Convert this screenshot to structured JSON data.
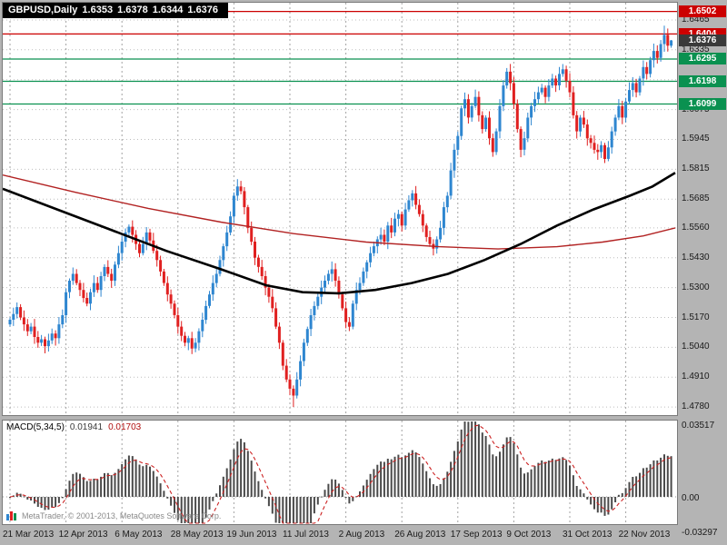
{
  "title": {
    "symbol": "GBPUSD,Daily",
    "open": "1.6353",
    "high": "1.6378",
    "low": "1.6344",
    "close": "1.6376"
  },
  "macd": {
    "name": "MACD(5,34,5)",
    "main": "0.01941",
    "signal": "0.01703",
    "axis_top": "0.03517",
    "axis_zero": "0.00",
    "axis_bottom": "-0.03297"
  },
  "footer": {
    "copyright": "MetaTrader, © 2001-2013, MetaQuotes Software Corp."
  },
  "colors": {
    "up": "#2e86d0",
    "down": "#e02020",
    "ma_black": "#000000",
    "ma_red": "#b22222",
    "resistance": "#cc0000",
    "support": "#0a9150",
    "current_badge": "#3a3a3a",
    "grid_h": "#bdbdbd",
    "grid_v": "#a3a3a3",
    "histogram": "#4a4a4a",
    "signal_line": "#cc2222"
  },
  "chart_data": {
    "type": "candlestick",
    "symbol": "GBPUSD",
    "timeframe": "Daily",
    "x_labels": [
      "21 Mar 2013",
      "12 Apr 2013",
      "6 May 2013",
      "28 May 2013",
      "19 Jun 2013",
      "11 Jul 2013",
      "2 Aug 2013",
      "26 Aug 2013",
      "17 Sep 2013",
      "9 Oct 2013",
      "31 Oct 2013",
      "22 Nov 2013"
    ],
    "bars_per_label": 16,
    "y_ticks": [
      "1.6465",
      "1.6335",
      "1.6205",
      "1.6075",
      "1.5945",
      "1.5815",
      "1.5685",
      "1.5560",
      "1.5430",
      "1.5300",
      "1.5170",
      "1.5040",
      "1.4910",
      "1.4780"
    ],
    "price_range": [
      1.4745,
      1.654
    ],
    "first_open": 1.514,
    "closes": [
      1.516,
      1.5185,
      1.5215,
      1.517,
      1.514,
      1.511,
      1.513,
      1.5085,
      1.506,
      1.5075,
      1.5045,
      1.507,
      1.51,
      1.508,
      1.514,
      1.518,
      1.528,
      1.533,
      1.536,
      1.532,
      1.529,
      1.5255,
      1.523,
      1.528,
      1.532,
      1.529,
      1.535,
      1.539,
      1.536,
      1.533,
      1.54,
      1.545,
      1.55,
      1.554,
      1.5565,
      1.553,
      1.549,
      1.545,
      1.549,
      1.554,
      1.5505,
      1.546,
      1.542,
      1.537,
      1.532,
      1.527,
      1.523,
      1.518,
      1.513,
      1.509,
      1.506,
      1.508,
      1.5035,
      1.506,
      1.511,
      1.516,
      1.522,
      1.527,
      1.532,
      1.536,
      1.542,
      1.548,
      1.554,
      1.561,
      1.57,
      1.574,
      1.572,
      1.565,
      1.556,
      1.55,
      1.543,
      1.539,
      1.535,
      1.53,
      1.526,
      1.521,
      1.513,
      1.506,
      1.496,
      1.49,
      1.486,
      1.483,
      1.49,
      1.498,
      1.506,
      1.512,
      1.518,
      1.522,
      1.526,
      1.53,
      1.533,
      1.536,
      1.538,
      1.533,
      1.527,
      1.521,
      1.515,
      1.513,
      1.523,
      1.529,
      1.532,
      1.537,
      1.541,
      1.545,
      1.548,
      1.551,
      1.553,
      1.55,
      1.557,
      1.554,
      1.56,
      1.562,
      1.557,
      1.564,
      1.568,
      1.571,
      1.566,
      1.562,
      1.557,
      1.552,
      1.549,
      1.547,
      1.551,
      1.556,
      1.565,
      1.57,
      1.581,
      1.59,
      1.596,
      1.608,
      1.612,
      1.604,
      1.609,
      1.613,
      1.605,
      1.599,
      1.604,
      1.595,
      1.589,
      1.598,
      1.609,
      1.618,
      1.624,
      1.619,
      1.61,
      1.599,
      1.59,
      1.595,
      1.604,
      1.609,
      1.612,
      1.615,
      1.617,
      1.613,
      1.618,
      1.621,
      1.618,
      1.623,
      1.625,
      1.62,
      1.615,
      1.605,
      1.598,
      1.604,
      1.601,
      1.595,
      1.593,
      1.59,
      1.589,
      1.592,
      1.586,
      1.591,
      1.598,
      1.604,
      1.609,
      1.604,
      1.611,
      1.616,
      1.619,
      1.615,
      1.621,
      1.626,
      1.623,
      1.629,
      1.633,
      1.63,
      1.636,
      1.64,
      1.6353,
      1.6376
    ],
    "extremes": {
      "min_low": 1.478,
      "min_index": 81,
      "max_high": 1.644,
      "max_index": 187,
      "last_ohlc": [
        1.6353,
        1.6378,
        1.6344,
        1.6376
      ]
    },
    "levels": [
      {
        "label": "1.6502",
        "price": 1.6502,
        "type": "resistance"
      },
      {
        "label": "1.6404",
        "price": 1.6404,
        "type": "resistance"
      },
      {
        "label": "1.6376",
        "price": 1.6376,
        "type": "current"
      },
      {
        "label": "1.6295",
        "price": 1.6295,
        "type": "support"
      },
      {
        "label": "1.6198",
        "price": 1.6198,
        "type": "support"
      },
      {
        "label": "1.6099",
        "price": 1.6099,
        "type": "support"
      }
    ],
    "ma_black": {
      "points": [
        [
          0,
          1.573
        ],
        [
          60,
          1.564
        ],
        [
          120,
          1.555
        ],
        [
          180,
          1.546
        ],
        [
          240,
          1.538
        ],
        [
          290,
          1.531
        ],
        [
          330,
          1.528
        ],
        [
          370,
          1.5275
        ],
        [
          410,
          1.529
        ],
        [
          450,
          1.532
        ],
        [
          490,
          1.536
        ],
        [
          530,
          1.542
        ],
        [
          570,
          1.549
        ],
        [
          610,
          1.557
        ],
        [
          650,
          1.564
        ],
        [
          690,
          1.57
        ],
        [
          715,
          1.574
        ],
        [
          740,
          1.58
        ]
      ]
    },
    "ma_red": {
      "points": [
        [
          0,
          1.579
        ],
        [
          80,
          1.5715
        ],
        [
          160,
          1.5645
        ],
        [
          240,
          1.5585
        ],
        [
          320,
          1.5535
        ],
        [
          400,
          1.5498
        ],
        [
          480,
          1.5478
        ],
        [
          545,
          1.5468
        ],
        [
          610,
          1.5478
        ],
        [
          660,
          1.5498
        ],
        [
          705,
          1.5525
        ],
        [
          740,
          1.556
        ]
      ]
    },
    "macd": {
      "params": [
        5,
        34,
        5
      ],
      "main_last": 0.01941,
      "signal_last": 0.01703,
      "scale_max": 0.03517,
      "scale_min": -0.03297
    }
  }
}
